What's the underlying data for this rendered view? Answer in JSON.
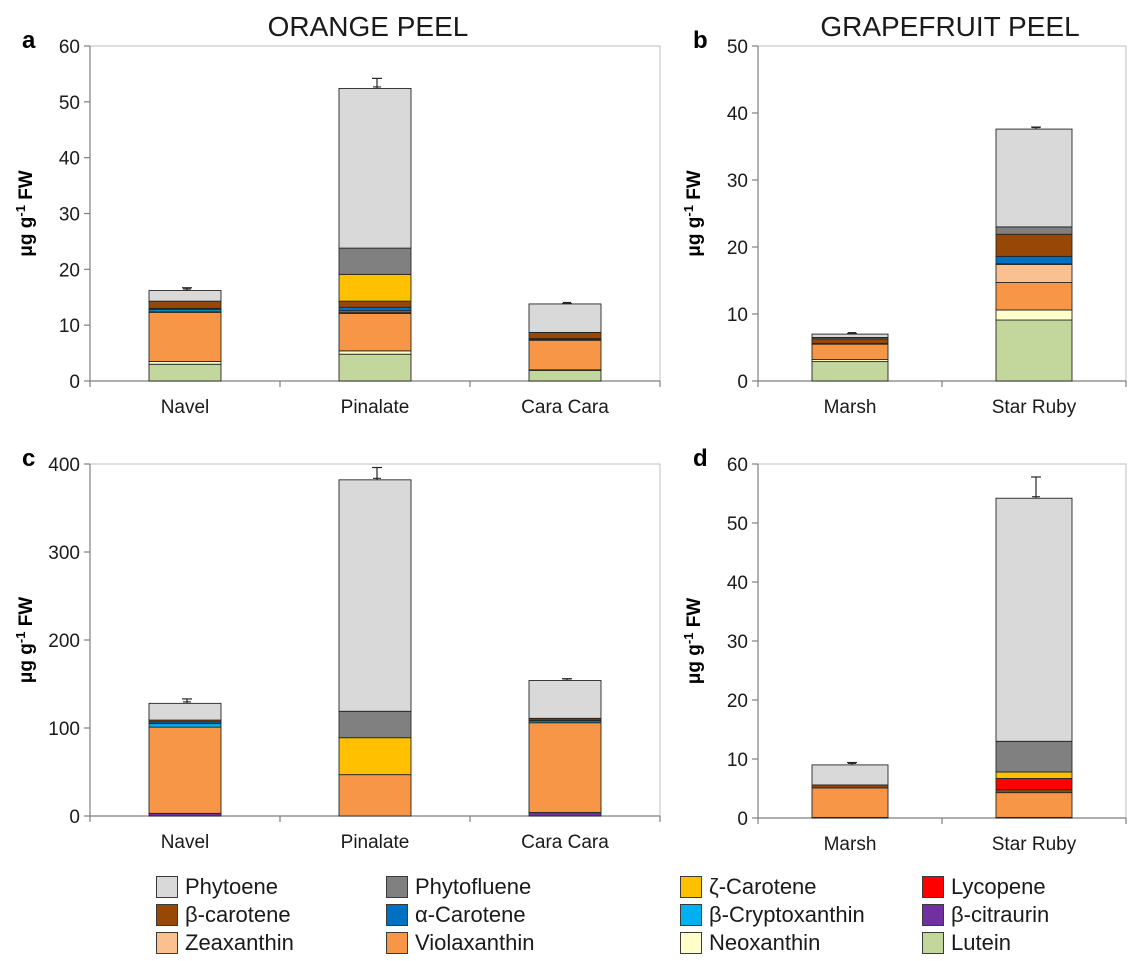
{
  "headings": {
    "orange": "ORANGE PEEL",
    "grapefruit": "GRAPEFRUIT PEEL"
  },
  "legend": {
    "Phytoene": {
      "label": "Phytoene",
      "color": "#d9d9d9"
    },
    "Phytofluene": {
      "label": "Phytofluene",
      "color": "#808080"
    },
    "ZetaCarotene": {
      "label": "ζ-Carotene",
      "color": "#ffc000"
    },
    "Lycopene": {
      "label": "Lycopene",
      "color": "#ff0000"
    },
    "BetaCarotene": {
      "label": "β-carotene",
      "color": "#974706"
    },
    "AlphaCarotene": {
      "label": "α-Carotene",
      "color": "#0070c0"
    },
    "BetaCryptoxanthin": {
      "label": "β-Cryptoxanthin",
      "color": "#00b0f0"
    },
    "BetaCitraurin": {
      "label": "β-citraurin",
      "color": "#7030a0"
    },
    "Zeaxanthin": {
      "label": "Zeaxanthin",
      "color": "#fac090"
    },
    "Violaxanthin": {
      "label": "Violaxanthin",
      "color": "#f79646"
    },
    "Neoxanthin": {
      "label": "Neoxanthin",
      "color": "#ffffcc"
    },
    "Lutein": {
      "label": "Lutein",
      "color": "#c3d69b"
    }
  },
  "chart_data": [
    {
      "type": "bar",
      "stacked": true,
      "panel": "a",
      "ylabel": "μg g-1 FW",
      "ylim": [
        0,
        60
      ],
      "yticks": [
        0,
        10,
        20,
        30,
        40,
        50,
        60
      ],
      "categories": [
        "Navel",
        "Pinalate",
        "Cara Cara"
      ],
      "series": [
        {
          "name": "Lutein",
          "values": [
            3.0,
            4.8,
            1.9
          ]
        },
        {
          "name": "Neoxanthin",
          "values": [
            0.5,
            0.6,
            0.1
          ]
        },
        {
          "name": "Violaxanthin",
          "values": [
            8.8,
            6.7,
            5.3
          ]
        },
        {
          "name": "Zeaxanthin",
          "values": [
            0.2,
            0.2,
            0.1
          ]
        },
        {
          "name": "β-Cryptoxanthin",
          "values": [
            0.3,
            0.3,
            0.1
          ]
        },
        {
          "name": "α-Carotene",
          "values": [
            0.2,
            0.6,
            0.1
          ]
        },
        {
          "name": "β-carotene",
          "values": [
            1.3,
            1.1,
            1.1
          ]
        },
        {
          "name": "ζ-Carotene",
          "values": [
            0.0,
            4.8,
            0.0
          ]
        },
        {
          "name": "Phytofluene",
          "values": [
            0.0,
            4.7,
            0.0
          ]
        },
        {
          "name": "Phytoene",
          "values": [
            1.9,
            28.6,
            5.1
          ]
        }
      ],
      "error_tops": [
        0.5,
        1.8,
        0.1
      ]
    },
    {
      "type": "bar",
      "stacked": true,
      "panel": "b",
      "ylabel": "μg g-1 FW",
      "ylim": [
        0,
        50
      ],
      "yticks": [
        0,
        10,
        20,
        30,
        40,
        50
      ],
      "categories": [
        "Marsh",
        "Star Ruby"
      ],
      "series": [
        {
          "name": "Lutein",
          "values": [
            2.9,
            9.1
          ]
        },
        {
          "name": "Neoxanthin",
          "values": [
            0.3,
            1.5
          ]
        },
        {
          "name": "Violaxanthin",
          "values": [
            2.3,
            4.1
          ]
        },
        {
          "name": "Zeaxanthin",
          "values": [
            0.1,
            2.7
          ]
        },
        {
          "name": "β-Cryptoxanthin",
          "values": [
            0.0,
            0.1
          ]
        },
        {
          "name": "α-Carotene",
          "values": [
            0.0,
            1.1
          ]
        },
        {
          "name": "β-carotene",
          "values": [
            0.7,
            3.3
          ]
        },
        {
          "name": "Phytofluene",
          "values": [
            0.2,
            1.1
          ]
        },
        {
          "name": "Phytoene",
          "values": [
            0.5,
            14.6
          ]
        }
      ],
      "error_tops": [
        0.1,
        0.3
      ]
    },
    {
      "type": "bar",
      "stacked": true,
      "panel": "c",
      "ylabel": "μg g-1 FW",
      "ylim": [
        0,
        400
      ],
      "yticks": [
        0,
        100,
        200,
        300,
        400
      ],
      "categories": [
        "Navel",
        "Pinalate",
        "Cara Cara"
      ],
      "series": [
        {
          "name": "β-citraurin",
          "values": [
            3,
            0,
            4
          ]
        },
        {
          "name": "Violaxanthin",
          "values": [
            98,
            47,
            102
          ]
        },
        {
          "name": "β-Cryptoxanthin",
          "values": [
            4,
            0,
            2
          ]
        },
        {
          "name": "α-Carotene",
          "values": [
            2,
            0,
            1
          ]
        },
        {
          "name": "β-carotene",
          "values": [
            2,
            0,
            2
          ]
        },
        {
          "name": "ζ-Carotene",
          "values": [
            0,
            42,
            0
          ]
        },
        {
          "name": "Phytofluene",
          "values": [
            0,
            30,
            0
          ]
        },
        {
          "name": "Phytoene",
          "values": [
            19,
            263,
            43
          ]
        }
      ],
      "error_tops": [
        5,
        14,
        2
      ]
    },
    {
      "type": "bar",
      "stacked": true,
      "panel": "d",
      "ylabel": "μg g-1 FW",
      "ylim": [
        0,
        60
      ],
      "yticks": [
        0,
        10,
        20,
        30,
        40,
        50,
        60
      ],
      "categories": [
        "Marsh",
        "Star Ruby"
      ],
      "series": [
        {
          "name": "β-citraurin",
          "values": [
            0.1,
            0.1
          ]
        },
        {
          "name": "Violaxanthin",
          "values": [
            5.0,
            4.2
          ]
        },
        {
          "name": "β-carotene",
          "values": [
            0.5,
            0.5
          ]
        },
        {
          "name": "Lycopene",
          "values": [
            0.0,
            1.9
          ]
        },
        {
          "name": "ζ-Carotene",
          "values": [
            0.0,
            1.1
          ]
        },
        {
          "name": "Phytofluene",
          "values": [
            0.0,
            5.2
          ]
        },
        {
          "name": "Phytoene",
          "values": [
            3.4,
            41.2
          ]
        }
      ],
      "error_tops": [
        0.4,
        3.6
      ]
    }
  ]
}
